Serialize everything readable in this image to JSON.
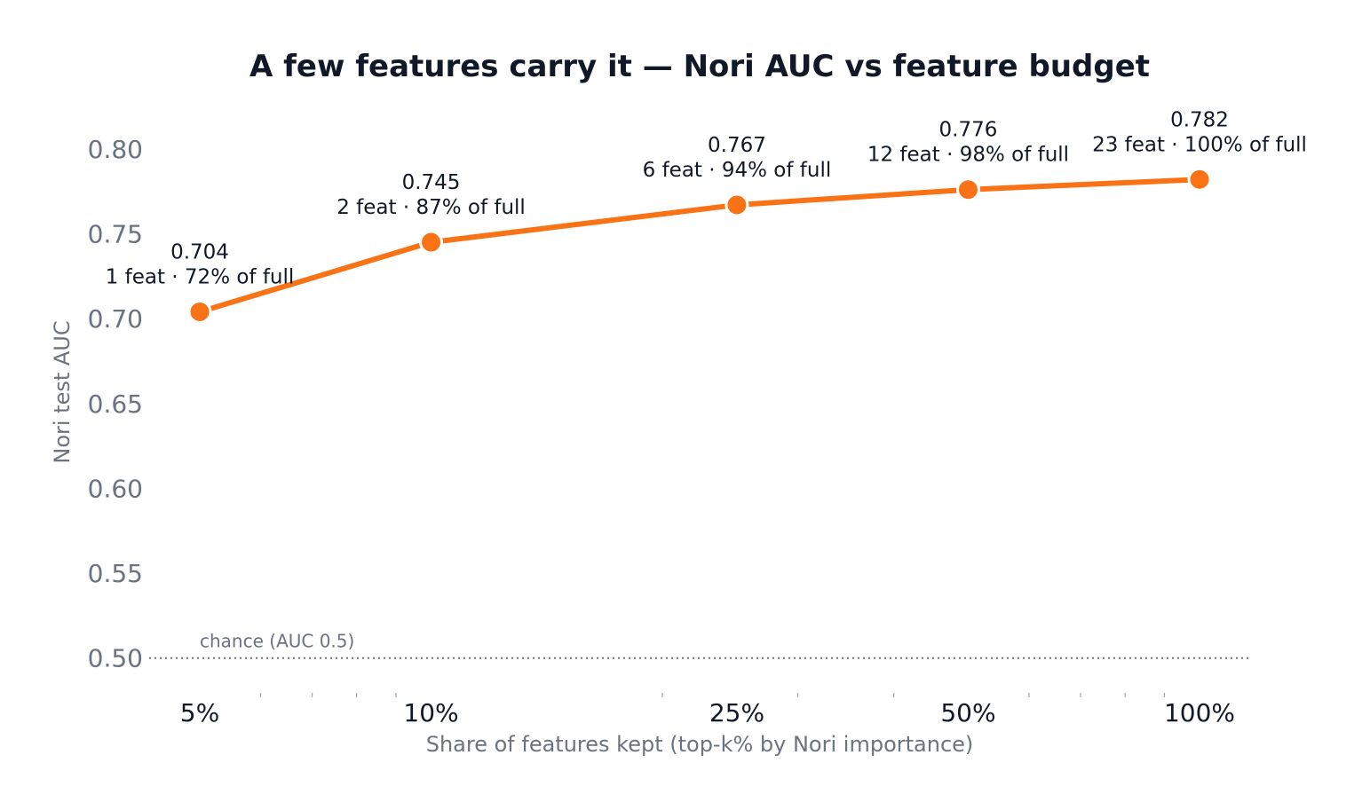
{
  "chart_data": {
    "type": "line",
    "title": "A few features carry it — Nori AUC vs feature budget",
    "xlabel": "Share of features kept  (top-k% by Nori importance)",
    "ylabel": "Nori test AUC",
    "x_scale": "log",
    "x_ticks": [
      5,
      10,
      25,
      50,
      100
    ],
    "x_tick_labels": [
      "5%",
      "10%",
      "25%",
      "50%",
      "100%"
    ],
    "x_minor_ticks": [
      6,
      7,
      8,
      9,
      20,
      30,
      40,
      60,
      70,
      80,
      90
    ],
    "ylim": [
      0.48,
      0.825
    ],
    "y_ticks": [
      0.5,
      0.55,
      0.6,
      0.65,
      0.7,
      0.75,
      0.8
    ],
    "y_tick_labels": [
      "0.50",
      "0.55",
      "0.60",
      "0.65",
      "0.70",
      "0.75",
      "0.80"
    ],
    "grid": false,
    "legend": "none",
    "series": [
      {
        "color": "#f97316",
        "x": [
          5,
          10,
          25,
          50,
          100
        ],
        "y": [
          0.704,
          0.745,
          0.767,
          0.776,
          0.782
        ],
        "value_labels": [
          "0.704",
          "0.745",
          "0.767",
          "0.776",
          "0.782"
        ],
        "annotations": [
          "1 feat · 72% of full",
          "2 feat · 87% of full",
          "6 feat · 94% of full",
          "12 feat · 98% of full",
          "23 feat · 100% of full"
        ]
      }
    ],
    "reference_line": {
      "y": 0.5,
      "label": "chance (AUC 0.5)",
      "color": "#6b7280",
      "style": "dotted"
    }
  }
}
